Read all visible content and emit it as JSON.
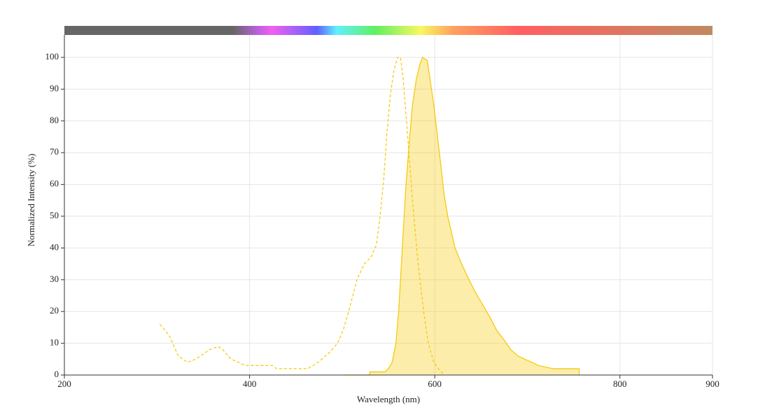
{
  "chart_data": {
    "type": "line",
    "xlabel": "Wavelength (nm)",
    "ylabel": "Normalized Intensity (%)",
    "xlim": [
      200,
      900
    ],
    "xticks": [
      200,
      400,
      600,
      800,
      900
    ],
    "ylim": [
      0,
      100
    ],
    "yticks": [
      0,
      10,
      20,
      30,
      40,
      50,
      60,
      70,
      80,
      90,
      100
    ],
    "grid": true,
    "series": [
      {
        "color": "#f5c800",
        "dashed": true,
        "filled": false,
        "x": [
          303,
          309,
          314,
          323,
          333,
          342,
          357,
          366,
          371,
          380,
          388,
          395,
          425,
          429,
          455,
          463,
          474,
          486,
          495,
          501,
          508,
          516,
          524,
          531,
          537,
          541,
          545,
          548,
          552,
          556,
          560,
          563,
          566,
          570,
          576,
          582,
          588,
          593,
          599,
          604,
          610
        ],
        "values": [
          16,
          14,
          12,
          6,
          4,
          5,
          8,
          9,
          8,
          5,
          4,
          3,
          3,
          2,
          2,
          2,
          4,
          7,
          10,
          14,
          21,
          30,
          35,
          37,
          41,
          50,
          62,
          75,
          88,
          96,
          100,
          100,
          93,
          78,
          55,
          35,
          20,
          10,
          4,
          2,
          0
        ]
      },
      {
        "color": "#f5c800",
        "dashed": false,
        "filled": true,
        "x": [
          502,
          530,
          530,
          546,
          550,
          554,
          558,
          561,
          565,
          569,
          573,
          576,
          580,
          584,
          587,
          592,
          595,
          599,
          603,
          607,
          610,
          614,
          618,
          622,
          629,
          637,
          644,
          652,
          660,
          667,
          675,
          682,
          690,
          697,
          705,
          712,
          728,
          756,
          756
        ],
        "values": [
          0,
          0,
          1,
          1,
          2,
          4,
          10,
          20,
          40,
          60,
          75,
          85,
          93,
          98,
          100,
          99,
          93,
          85,
          75,
          65,
          57,
          50,
          45,
          40,
          35,
          30,
          26,
          22,
          18,
          14,
          11,
          8,
          6,
          5,
          4,
          3,
          2,
          2,
          0
        ]
      }
    ]
  }
}
